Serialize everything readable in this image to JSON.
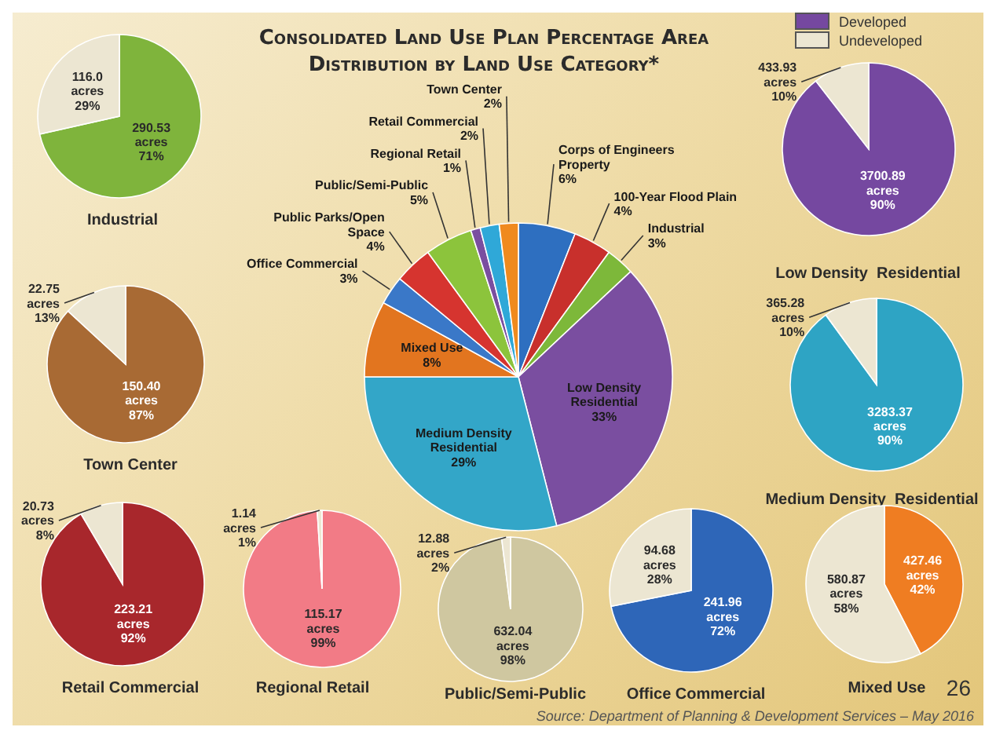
{
  "chart_data": [
    {
      "type": "pie",
      "title": "Consolidated Land Use Plan Percentage Area Distribution by Land Use Category*",
      "categories": [
        "Corps of Engineers Property",
        "100-Year Flood Plain",
        "Industrial",
        "Low Density Residential",
        "Medium Density Residential",
        "Mixed Use",
        "Office Commercial",
        "Public Parks/Open Space",
        "Public/Semi-Public",
        "Regional Retail",
        "Retail Commercial",
        "Town Center"
      ],
      "values": [
        6,
        4,
        3,
        33,
        29,
        8,
        3,
        4,
        5,
        1,
        2,
        2
      ],
      "colors": [
        "#2e6fc0",
        "#c8302c",
        "#7db83a",
        "#7a4ea0",
        "#33a6c8",
        "#e2751f",
        "#3a78c8",
        "#d6342f",
        "#8cc43c",
        "#7a4ea0",
        "#2fa8d8",
        "#f08a1e"
      ],
      "value_labels": [
        "6%",
        "4%",
        "3%",
        "33%",
        "29%",
        "8%",
        "3%",
        "4%",
        "5%",
        "1%",
        "2%",
        "2%"
      ],
      "annotations": [
        "Source: Department of Planning & Development Services – May 2016",
        "26"
      ]
    },
    {
      "type": "pie",
      "title": "Industrial",
      "categories": [
        null,
        null
      ],
      "values": [
        290.53,
        116.0
      ],
      "colors": [
        "#7fb43c",
        "#ece6d2"
      ],
      "value_labels": [
        "290.53\nacres\n71%",
        "116.0\nacres\n29%"
      ]
    },
    {
      "type": "pie",
      "title": "Low Density  Residential",
      "categories": [
        "Developed",
        "Undeveloped"
      ],
      "values": [
        3700.89,
        433.93
      ],
      "colors": [
        "#7548a0",
        "#ece6d2"
      ],
      "value_labels": [
        "3700.89\nacres\n90%",
        "433.93\nacres\n10%"
      ],
      "legend": "top"
    },
    {
      "type": "pie",
      "title": "Town Center",
      "categories": [
        null,
        null
      ],
      "values": [
        150.4,
        22.75
      ],
      "colors": [
        "#a86a34",
        "#ece6d2"
      ],
      "value_labels": [
        "150.40\nacres\n87%",
        "22.75\nacres\n13%"
      ]
    },
    {
      "type": "pie",
      "title": "Medium Density  Residential",
      "categories": [
        null,
        null
      ],
      "values": [
        3283.37,
        365.28
      ],
      "colors": [
        "#2ea4c4",
        "#ece6d2"
      ],
      "value_labels": [
        "3283.37\nacres\n90%",
        "365.28\nacres\n10%"
      ]
    },
    {
      "type": "pie",
      "title": "Retail Commercial",
      "categories": [
        null,
        null
      ],
      "values": [
        223.21,
        20.73
      ],
      "colors": [
        "#a8272c",
        "#ece6d2"
      ],
      "value_labels": [
        "223.21\nacres\n92%",
        "20.73\nacres\n8%"
      ]
    },
    {
      "type": "pie",
      "title": "Regional Retail",
      "categories": [
        null,
        null
      ],
      "values": [
        115.17,
        1.14
      ],
      "colors": [
        "#f27b86",
        "#ece6d2"
      ],
      "value_labels": [
        "115.17\nacres\n99%",
        "1.14\nacres\n1%"
      ]
    },
    {
      "type": "pie",
      "title": "Public/Semi-Public",
      "categories": [
        null,
        null
      ],
      "values": [
        632.04,
        12.88
      ],
      "colors": [
        "#cfc7a0",
        "#ece6d2"
      ],
      "value_labels": [
        "632.04\nacres\n98%",
        "12.88\nacres\n2%"
      ]
    },
    {
      "type": "pie",
      "title": "Office Commercial",
      "categories": [
        null,
        null
      ],
      "values": [
        241.96,
        94.68
      ],
      "colors": [
        "#2e66b8",
        "#ece6d2"
      ],
      "value_labels": [
        "241.96\nacres\n72%",
        "94.68\nacres\n28%"
      ]
    },
    {
      "type": "pie",
      "title": "Mixed Use",
      "categories": [
        null,
        null
      ],
      "values": [
        427.46,
        580.87
      ],
      "colors": [
        "#ef7d22",
        "#ece6d2"
      ],
      "value_labels": [
        "427.46\nacres\n42%",
        "580.87\nacres\n58%"
      ]
    }
  ]
}
